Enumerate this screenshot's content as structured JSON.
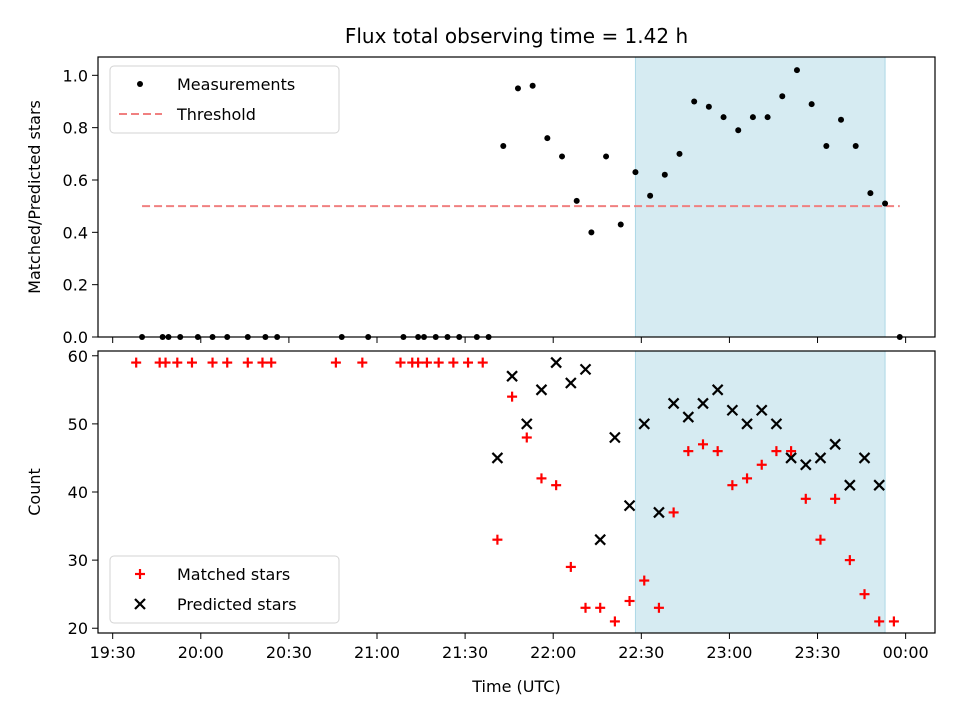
{
  "chart_data": [
    {
      "type": "scatter",
      "title": "Flux total observing time = 1.42 h",
      "xlabel": "",
      "ylabel": "Matched/Predicted stars",
      "ylim": [
        0,
        1.07
      ],
      "yticks": [
        "0.0",
        "0.2",
        "0.4",
        "0.6",
        "0.8",
        "1.0"
      ],
      "xlim": [
        "19:25",
        "00:10"
      ],
      "shaded_interval": [
        "22:28",
        "23:53"
      ],
      "legend": {
        "placement": "top-left",
        "entries": [
          "Measurements",
          "Threshold"
        ]
      },
      "threshold": {
        "name": "Threshold",
        "value": 0.5,
        "x": [
          "19:40",
          "23:58"
        ],
        "color": "#f08080"
      },
      "series": [
        {
          "name": "Measurements",
          "color": "#000000",
          "points": [
            [
              "19:40",
              0.0
            ],
            [
              "19:47",
              0.0
            ],
            [
              "19:49",
              0.0
            ],
            [
              "19:53",
              0.0
            ],
            [
              "19:59",
              0.0
            ],
            [
              "20:04",
              0.0
            ],
            [
              "20:09",
              0.0
            ],
            [
              "20:16",
              0.0
            ],
            [
              "20:22",
              0.0
            ],
            [
              "20:26",
              0.0
            ],
            [
              "20:48",
              0.0
            ],
            [
              "20:57",
              0.0
            ],
            [
              "21:09",
              0.0
            ],
            [
              "21:14",
              0.0
            ],
            [
              "21:16",
              0.0
            ],
            [
              "21:20",
              0.0
            ],
            [
              "21:24",
              0.0
            ],
            [
              "21:28",
              0.0
            ],
            [
              "21:34",
              0.0
            ],
            [
              "21:38",
              0.0
            ],
            [
              "21:43",
              0.73
            ],
            [
              "21:48",
              0.95
            ],
            [
              "21:53",
              0.96
            ],
            [
              "21:58",
              0.76
            ],
            [
              "22:03",
              0.69
            ],
            [
              "22:08",
              0.52
            ],
            [
              "22:13",
              0.4
            ],
            [
              "22:18",
              0.69
            ],
            [
              "22:23",
              0.43
            ],
            [
              "22:28",
              0.63
            ],
            [
              "22:33",
              0.54
            ],
            [
              "22:38",
              0.62
            ],
            [
              "22:43",
              0.7
            ],
            [
              "22:48",
              0.9
            ],
            [
              "22:53",
              0.88
            ],
            [
              "22:58",
              0.84
            ],
            [
              "23:03",
              0.79
            ],
            [
              "23:08",
              0.84
            ],
            [
              "23:13",
              0.84
            ],
            [
              "23:18",
              0.92
            ],
            [
              "23:23",
              1.02
            ],
            [
              "23:28",
              0.89
            ],
            [
              "23:33",
              0.73
            ],
            [
              "23:38",
              0.83
            ],
            [
              "23:43",
              0.73
            ],
            [
              "23:48",
              0.55
            ],
            [
              "23:53",
              0.51
            ],
            [
              "23:58",
              0.0
            ]
          ]
        }
      ]
    },
    {
      "type": "scatter",
      "title": "",
      "xlabel": "Time (UTC)",
      "ylabel": "Count",
      "ylim": [
        19.3,
        60.7
      ],
      "yticks": [
        "20",
        "30",
        "40",
        "50",
        "60"
      ],
      "xlim": [
        "19:25",
        "00:10"
      ],
      "xticks": [
        "19:30",
        "20:00",
        "20:30",
        "21:00",
        "21:30",
        "22:00",
        "22:30",
        "23:00",
        "23:30",
        "00:00"
      ],
      "shaded_interval": [
        "22:28",
        "23:53"
      ],
      "legend": {
        "placement": "bottom-left",
        "entries": [
          "Matched stars",
          "Predicted stars"
        ]
      },
      "series": [
        {
          "name": "Matched stars",
          "color": "#ff0000",
          "points": [
            [
              "19:38",
              59
            ],
            [
              "19:46",
              59
            ],
            [
              "19:48",
              59
            ],
            [
              "19:52",
              59
            ],
            [
              "19:57",
              59
            ],
            [
              "20:04",
              59
            ],
            [
              "20:09",
              59
            ],
            [
              "20:16",
              59
            ],
            [
              "20:21",
              59
            ],
            [
              "20:24",
              59
            ],
            [
              "20:46",
              59
            ],
            [
              "20:55",
              59
            ],
            [
              "21:08",
              59
            ],
            [
              "21:12",
              59
            ],
            [
              "21:14",
              59
            ],
            [
              "21:17",
              59
            ],
            [
              "21:21",
              59
            ],
            [
              "21:26",
              59
            ],
            [
              "21:31",
              59
            ],
            [
              "21:36",
              59
            ],
            [
              "21:41",
              33
            ],
            [
              "21:46",
              54
            ],
            [
              "21:51",
              48
            ],
            [
              "21:56",
              42
            ],
            [
              "22:01",
              41
            ],
            [
              "22:06",
              29
            ],
            [
              "22:11",
              23
            ],
            [
              "22:16",
              23
            ],
            [
              "22:21",
              21
            ],
            [
              "22:26",
              24
            ],
            [
              "22:31",
              27
            ],
            [
              "22:36",
              23
            ],
            [
              "22:41",
              37
            ],
            [
              "22:46",
              46
            ],
            [
              "22:51",
              47
            ],
            [
              "22:56",
              46
            ],
            [
              "23:01",
              41
            ],
            [
              "23:06",
              42
            ],
            [
              "23:11",
              44
            ],
            [
              "23:16",
              46
            ],
            [
              "23:21",
              46
            ],
            [
              "23:26",
              39
            ],
            [
              "23:31",
              33
            ],
            [
              "23:36",
              39
            ],
            [
              "23:41",
              30
            ],
            [
              "23:46",
              25
            ],
            [
              "23:51",
              21
            ],
            [
              "23:56",
              21
            ]
          ]
        },
        {
          "name": "Predicted stars",
          "color": "#000000",
          "points": [
            [
              "21:41",
              45
            ],
            [
              "21:46",
              57
            ],
            [
              "21:51",
              50
            ],
            [
              "21:56",
              55
            ],
            [
              "22:01",
              59
            ],
            [
              "22:06",
              56
            ],
            [
              "22:11",
              58
            ],
            [
              "22:16",
              33
            ],
            [
              "22:21",
              48
            ],
            [
              "22:26",
              38
            ],
            [
              "22:31",
              50
            ],
            [
              "22:36",
              37
            ],
            [
              "22:41",
              53
            ],
            [
              "22:46",
              51
            ],
            [
              "22:51",
              53
            ],
            [
              "22:56",
              55
            ],
            [
              "23:01",
              52
            ],
            [
              "23:06",
              50
            ],
            [
              "23:11",
              52
            ],
            [
              "23:16",
              50
            ],
            [
              "23:21",
              45
            ],
            [
              "23:26",
              44
            ],
            [
              "23:31",
              45
            ],
            [
              "23:36",
              47
            ],
            [
              "23:41",
              41
            ],
            [
              "23:46",
              45
            ],
            [
              "23:51",
              41
            ]
          ]
        }
      ]
    }
  ]
}
